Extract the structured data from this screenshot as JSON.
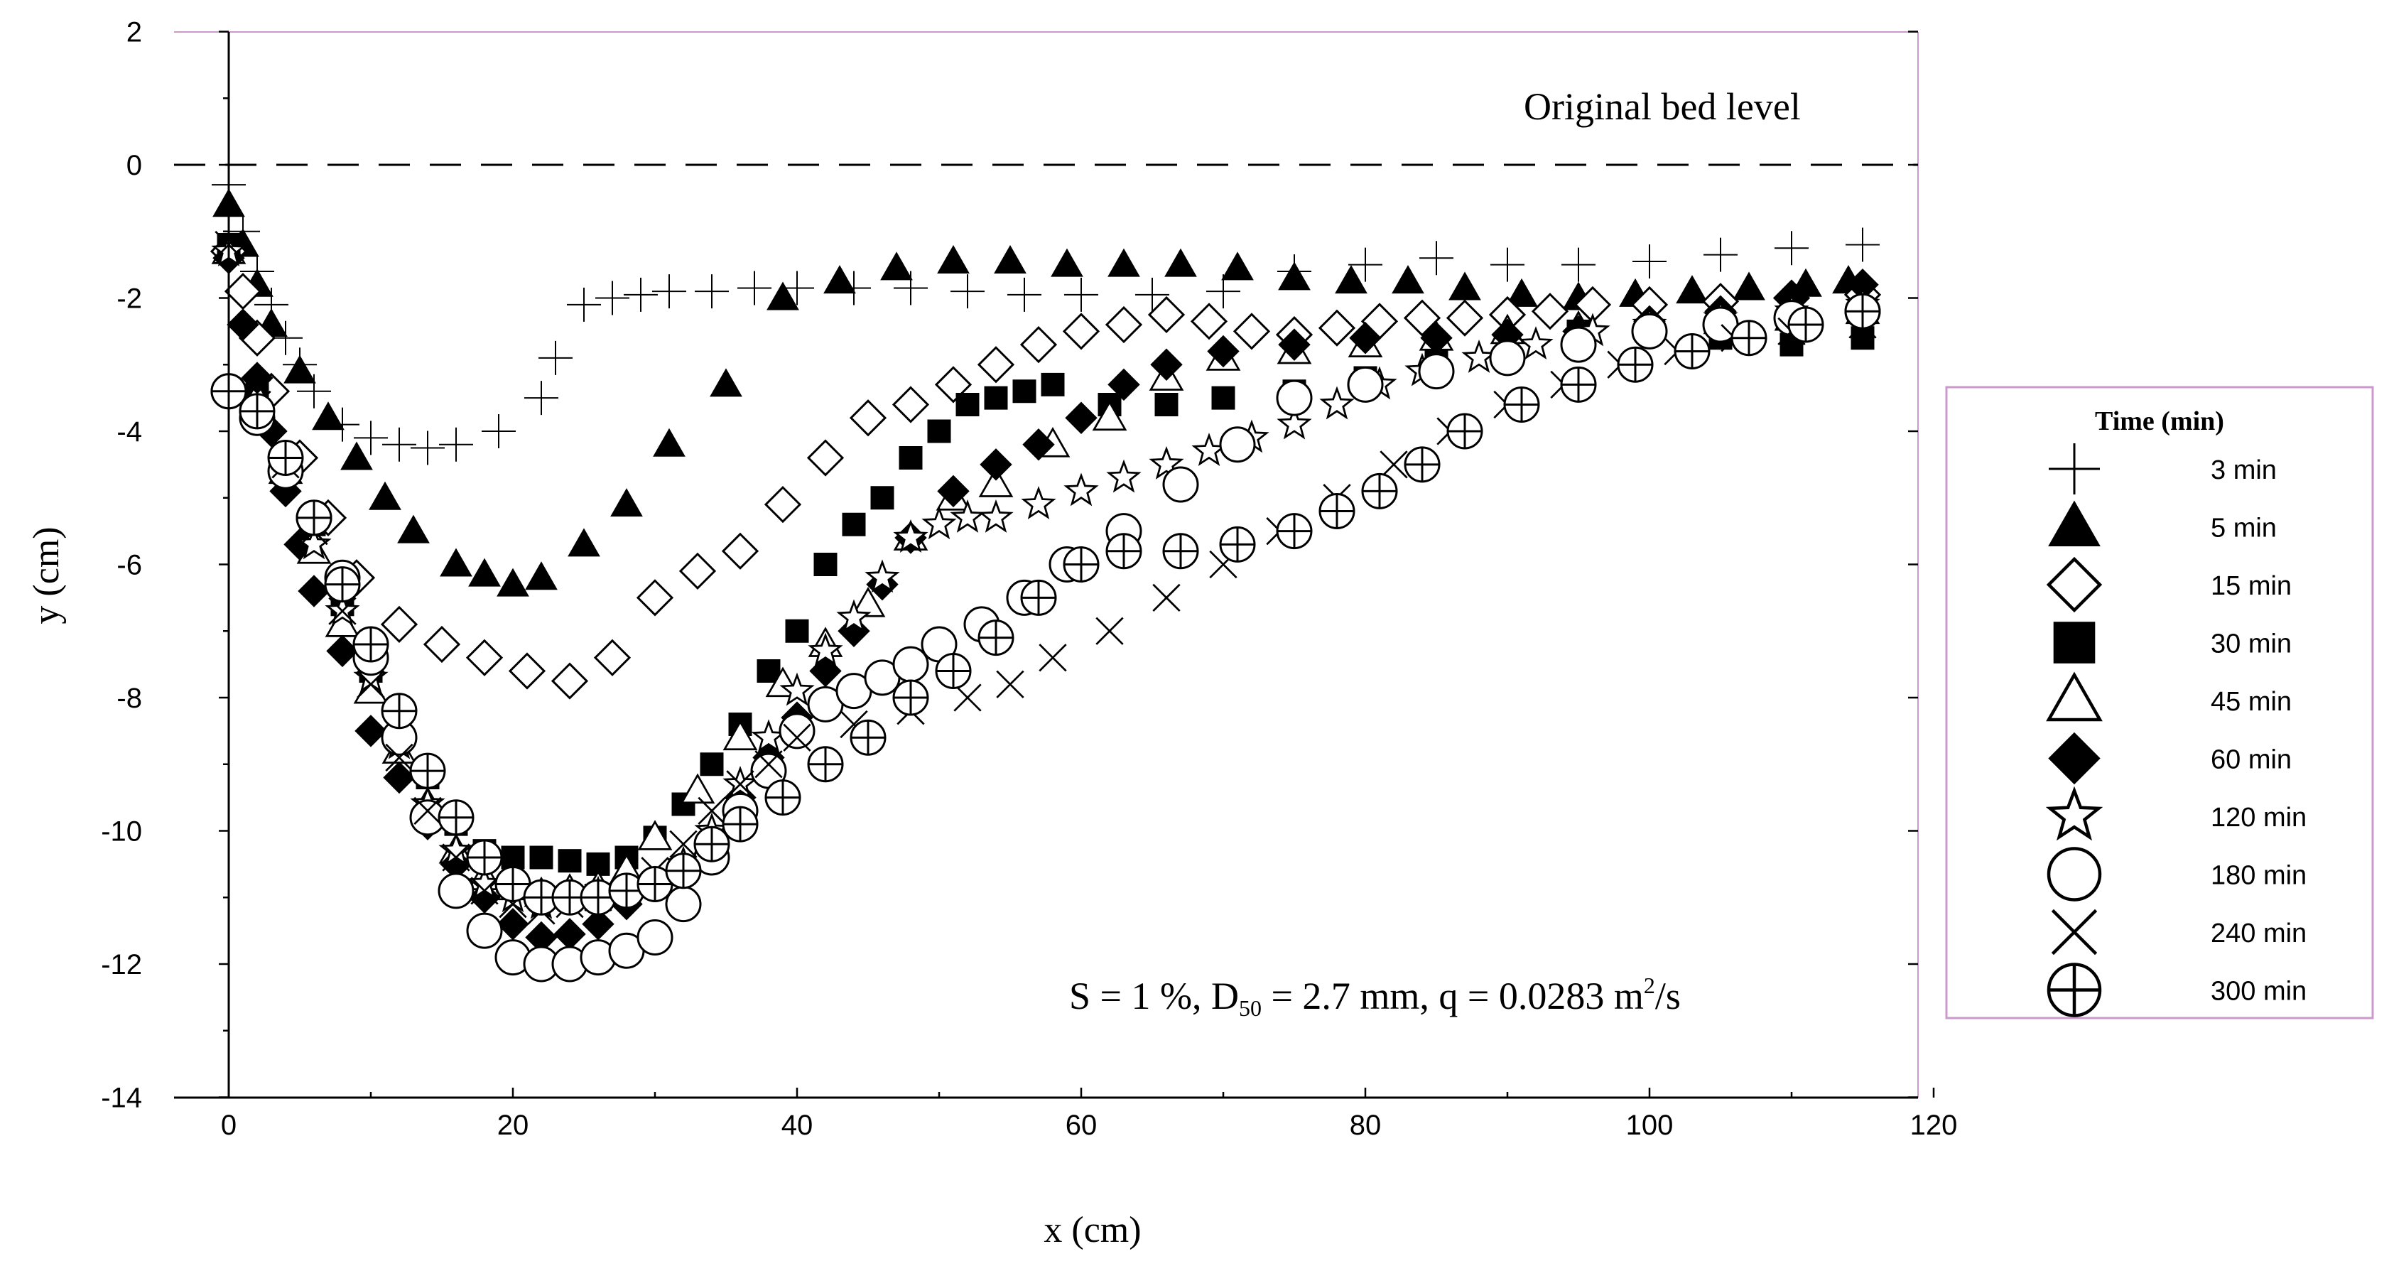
{
  "chart_data": {
    "type": "scatter",
    "title": "",
    "xlabel": "x (cm)",
    "ylabel": "y (cm)",
    "xlim": [
      -8,
      120
    ],
    "ylim": [
      -14,
      2
    ],
    "xticks": [
      "0",
      "20",
      "40",
      "60",
      "80",
      "100",
      "120"
    ],
    "yticks": [
      "2",
      "0",
      "-2",
      "-4",
      "-6",
      "-8",
      "-10",
      "-12",
      "-14"
    ],
    "reference_line": {
      "y": 0,
      "label": "Original bed level"
    },
    "annotation": {
      "prefix": "S  = 1 %, D",
      "subscript": "50",
      "middle": " = 2.7 mm, q = 0.0283 m",
      "superscript": "2",
      "suffix": "/s"
    },
    "legend": {
      "title": "Time (min)",
      "position": "right"
    },
    "series": [
      {
        "name": "3 min",
        "marker": "plus",
        "x": [
          0,
          1,
          2,
          3,
          4,
          5,
          6,
          8,
          10,
          12,
          14,
          16,
          19,
          22,
          23,
          25,
          27,
          29,
          31,
          34,
          37,
          40,
          44,
          48,
          52,
          56,
          60,
          65,
          70,
          75,
          80,
          85,
          90,
          95,
          100,
          105,
          110,
          115
        ],
        "y": [
          -0.3,
          -1.0,
          -1.6,
          -2.1,
          -2.6,
          -3.0,
          -3.4,
          -3.9,
          -4.1,
          -4.2,
          -4.25,
          -4.2,
          -4.0,
          -3.5,
          -2.9,
          -2.1,
          -2.0,
          -1.95,
          -1.9,
          -1.9,
          -1.85,
          -1.85,
          -1.85,
          -1.85,
          -1.9,
          -1.95,
          -1.95,
          -1.95,
          -1.9,
          -1.6,
          -1.5,
          -1.4,
          -1.5,
          -1.5,
          -1.45,
          -1.35,
          -1.25,
          -1.2
        ]
      },
      {
        "name": "5 min",
        "marker": "triangle-filled",
        "x": [
          0,
          1,
          2,
          3,
          5,
          7,
          9,
          11,
          13,
          16,
          18,
          20,
          22,
          25,
          28,
          31,
          35,
          39,
          43,
          47,
          51,
          55,
          59,
          63,
          67,
          71,
          75,
          79,
          83,
          87,
          91,
          95,
          99,
          103,
          107,
          111,
          114
        ],
        "y": [
          -0.6,
          -1.2,
          -1.8,
          -2.4,
          -3.1,
          -3.8,
          -4.4,
          -5.0,
          -5.5,
          -6.0,
          -6.15,
          -6.3,
          -6.2,
          -5.7,
          -5.1,
          -4.2,
          -3.3,
          -2.0,
          -1.75,
          -1.55,
          -1.45,
          -1.45,
          -1.5,
          -1.5,
          -1.5,
          -1.55,
          -1.7,
          -1.75,
          -1.75,
          -1.85,
          -1.95,
          -2.0,
          -1.95,
          -1.9,
          -1.85,
          -1.8,
          -1.75
        ]
      },
      {
        "name": "15 min",
        "marker": "diamond-open",
        "x": [
          0,
          1,
          2,
          3,
          5,
          7,
          9,
          12,
          15,
          18,
          21,
          24,
          27,
          30,
          33,
          36,
          39,
          42,
          45,
          48,
          51,
          54,
          57,
          60,
          63,
          66,
          69,
          72,
          75,
          78,
          81,
          84,
          87,
          90,
          93,
          96,
          100,
          105,
          110,
          115
        ],
        "y": [
          -1.3,
          -1.9,
          -2.6,
          -3.4,
          -4.4,
          -5.3,
          -6.2,
          -6.9,
          -7.2,
          -7.4,
          -7.6,
          -7.75,
          -7.4,
          -6.5,
          -6.1,
          -5.8,
          -5.1,
          -4.4,
          -3.8,
          -3.6,
          -3.3,
          -3.0,
          -2.7,
          -2.5,
          -2.4,
          -2.25,
          -2.35,
          -2.5,
          -2.55,
          -2.45,
          -2.35,
          -2.3,
          -2.3,
          -2.25,
          -2.2,
          -2.1,
          -2.1,
          -2.05,
          -2.0,
          -1.95
        ]
      },
      {
        "name": "30 min",
        "marker": "square-filled",
        "x": [
          0,
          2,
          4,
          6,
          8,
          10,
          12,
          14,
          16,
          18,
          20,
          22,
          24,
          26,
          28,
          30,
          32,
          34,
          36,
          38,
          40,
          42,
          44,
          46,
          48,
          50,
          52,
          54,
          56,
          58,
          62,
          66,
          70,
          75,
          80,
          85,
          90,
          95,
          100,
          105,
          110,
          115
        ],
        "y": [
          -1.2,
          -3.4,
          -4.4,
          -5.4,
          -6.6,
          -7.6,
          -8.6,
          -9.2,
          -9.9,
          -10.3,
          -10.4,
          -10.4,
          -10.45,
          -10.5,
          -10.4,
          -10.1,
          -9.6,
          -9.0,
          -8.4,
          -7.6,
          -7.0,
          -6.0,
          -5.4,
          -5.0,
          -4.4,
          -4.0,
          -3.6,
          -3.5,
          -3.4,
          -3.3,
          -3.6,
          -3.6,
          -3.5,
          -3.4,
          -3.2,
          -2.9,
          -2.7,
          -2.5,
          -2.5,
          -2.6,
          -2.7,
          -2.6
        ]
      },
      {
        "name": "45 min",
        "marker": "triangle-open",
        "x": [
          0,
          2,
          4,
          6,
          8,
          10,
          12,
          14,
          16,
          18,
          20,
          22,
          24,
          26,
          28,
          30,
          33,
          36,
          39,
          42,
          45,
          48,
          51,
          54,
          58,
          62,
          66,
          70,
          75,
          80,
          85,
          90,
          95,
          100,
          105,
          110,
          115
        ],
        "y": [
          -1.3,
          -3.5,
          -4.6,
          -5.8,
          -6.9,
          -7.9,
          -8.8,
          -9.6,
          -10.3,
          -10.7,
          -10.85,
          -10.95,
          -10.9,
          -10.85,
          -10.6,
          -10.1,
          -9.4,
          -8.6,
          -7.8,
          -7.2,
          -6.6,
          -5.6,
          -5.0,
          -4.8,
          -4.2,
          -3.8,
          -3.2,
          -2.9,
          -2.8,
          -2.7,
          -2.6,
          -2.5,
          -2.45,
          -2.4,
          -2.35,
          -2.3,
          -2.2
        ]
      },
      {
        "name": "60 min",
        "marker": "diamond-filled",
        "x": [
          0,
          1,
          2,
          3,
          4,
          5,
          6,
          8,
          10,
          12,
          14,
          16,
          18,
          20,
          22,
          24,
          26,
          28,
          30,
          32,
          34,
          36,
          38,
          40,
          42,
          44,
          46,
          48,
          51,
          54,
          57,
          60,
          63,
          66,
          70,
          75,
          80,
          85,
          90,
          95,
          100,
          105,
          110,
          115
        ],
        "y": [
          -1.4,
          -2.4,
          -3.2,
          -4.0,
          -4.9,
          -5.7,
          -6.4,
          -7.3,
          -8.5,
          -9.2,
          -9.9,
          -10.5,
          -11.0,
          -11.4,
          -11.6,
          -11.55,
          -11.4,
          -11.1,
          -10.8,
          -10.6,
          -10.2,
          -9.5,
          -8.9,
          -8.3,
          -7.6,
          -7.0,
          -6.3,
          -5.6,
          -4.9,
          -4.5,
          -4.2,
          -3.8,
          -3.3,
          -3.0,
          -2.8,
          -2.7,
          -2.6,
          -2.6,
          -2.55,
          -2.5,
          -2.35,
          -2.2,
          -2.0,
          -1.8
        ]
      },
      {
        "name": "120 min",
        "marker": "star-open",
        "x": [
          0,
          2,
          4,
          6,
          8,
          10,
          12,
          14,
          16,
          18,
          20,
          22,
          24,
          26,
          28,
          30,
          32,
          34,
          36,
          38,
          40,
          42,
          44,
          46,
          48,
          50,
          52,
          54,
          57,
          60,
          63,
          66,
          69,
          72,
          75,
          78,
          81,
          84,
          88,
          92,
          96,
          100,
          105,
          110,
          115
        ],
        "y": [
          -1.3,
          -3.7,
          -4.6,
          -5.7,
          -6.7,
          -7.7,
          -8.7,
          -9.6,
          -10.3,
          -10.8,
          -11.0,
          -11.1,
          -11.0,
          -10.95,
          -10.9,
          -10.8,
          -10.5,
          -10.0,
          -9.3,
          -8.6,
          -7.9,
          -7.3,
          -6.8,
          -6.2,
          -5.6,
          -5.4,
          -5.3,
          -5.3,
          -5.1,
          -4.9,
          -4.7,
          -4.5,
          -4.3,
          -4.1,
          -3.9,
          -3.6,
          -3.3,
          -3.1,
          -2.9,
          -2.7,
          -2.5,
          -2.4,
          -2.3,
          -2.2,
          -2.1
        ]
      },
      {
        "name": "180 min",
        "marker": "circle-open",
        "x": [
          0,
          2,
          4,
          6,
          8,
          10,
          12,
          14,
          16,
          18,
          20,
          22,
          24,
          26,
          28,
          30,
          32,
          34,
          36,
          38,
          40,
          42,
          44,
          46,
          48,
          50,
          53,
          56,
          59,
          63,
          67,
          71,
          75,
          80,
          85,
          90,
          95,
          100,
          105,
          110,
          115
        ],
        "y": [
          -3.4,
          -3.8,
          -4.6,
          -5.3,
          -6.2,
          -7.4,
          -8.6,
          -9.8,
          -10.9,
          -11.5,
          -11.9,
          -12.0,
          -12.0,
          -11.9,
          -11.8,
          -11.6,
          -11.1,
          -10.4,
          -9.7,
          -9.1,
          -8.5,
          -8.1,
          -7.9,
          -7.7,
          -7.5,
          -7.2,
          -6.9,
          -6.5,
          -6.0,
          -5.5,
          -4.8,
          -4.2,
          -3.5,
          -3.3,
          -3.1,
          -2.9,
          -2.7,
          -2.5,
          -2.4,
          -2.3,
          -2.2
        ]
      },
      {
        "name": "240 min",
        "marker": "x",
        "x": [
          0,
          2,
          4,
          6,
          8,
          10,
          12,
          14,
          16,
          18,
          20,
          22,
          24,
          26,
          28,
          30,
          32,
          34,
          36,
          38,
          40,
          44,
          48,
          52,
          55,
          58,
          62,
          66,
          70,
          74,
          78,
          82,
          86,
          90,
          94,
          98,
          102,
          106,
          110,
          115
        ],
        "y": [
          -1.2,
          -3.6,
          -4.5,
          -5.5,
          -6.7,
          -7.8,
          -8.9,
          -9.7,
          -10.4,
          -10.9,
          -11.1,
          -11.2,
          -11.1,
          -11.0,
          -10.9,
          -10.6,
          -10.2,
          -9.7,
          -9.3,
          -9.0,
          -8.6,
          -8.4,
          -8.2,
          -8.0,
          -7.8,
          -7.4,
          -7.0,
          -6.5,
          -6.0,
          -5.5,
          -5.0,
          -4.5,
          -4.0,
          -3.6,
          -3.3,
          -3.0,
          -2.8,
          -2.6,
          -2.5,
          -2.4
        ]
      },
      {
        "name": "300 min",
        "marker": "circle-plus",
        "x": [
          0,
          2,
          4,
          6,
          8,
          10,
          12,
          14,
          16,
          18,
          20,
          22,
          24,
          26,
          28,
          30,
          32,
          34,
          36,
          39,
          42,
          45,
          48,
          51,
          54,
          57,
          60,
          63,
          67,
          71,
          75,
          78,
          81,
          84,
          87,
          91,
          95,
          99,
          103,
          107,
          111,
          115
        ],
        "y": [
          -3.4,
          -3.7,
          -4.4,
          -5.3,
          -6.3,
          -7.2,
          -8.2,
          -9.1,
          -9.8,
          -10.4,
          -10.8,
          -11.0,
          -11.0,
          -11.0,
          -10.9,
          -10.8,
          -10.6,
          -10.2,
          -9.9,
          -9.5,
          -9.0,
          -8.6,
          -8.0,
          -7.6,
          -7.1,
          -6.5,
          -6.0,
          -5.8,
          -5.8,
          -5.7,
          -5.5,
          -5.2,
          -4.9,
          -4.5,
          -4.0,
          -3.6,
          -3.3,
          -3.0,
          -2.8,
          -2.6,
          -2.4,
          -2.2
        ]
      }
    ]
  }
}
